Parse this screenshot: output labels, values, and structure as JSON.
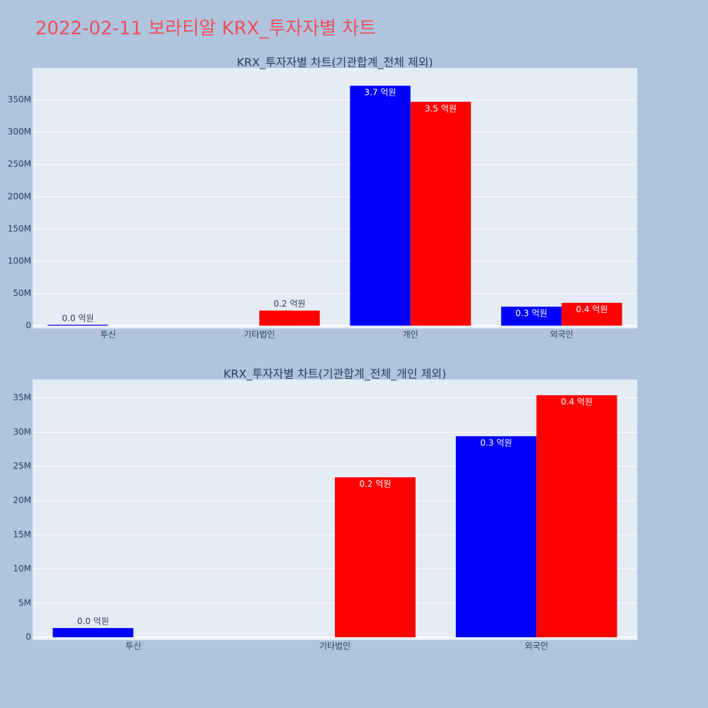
{
  "title": "2022-02-11 보라티알 KRX_투자자별 차트",
  "chart_data": [
    {
      "type": "bar",
      "title": "KRX_투자자별 차트(기관합계_전체 제외)",
      "categories": [
        "투신",
        "기타법인",
        "개인",
        "외국인"
      ],
      "series": [
        {
          "color": "#0000ff",
          "values": [
            1350000,
            null,
            372000000,
            29400000
          ],
          "value_labels": [
            "0.0 억원",
            null,
            "3.7 억원",
            "0.3 억원"
          ]
        },
        {
          "color": "#ff0000",
          "values": [
            null,
            23400000,
            347000000,
            35400000
          ],
          "value_labels": [
            null,
            "0.2 억원",
            "3.5 억원",
            "0.4 억원"
          ]
        }
      ],
      "ylim": [
        -4400000,
        399500000
      ],
      "yticks": [
        0,
        {
          "value": 50000000,
          "label": "50M"
        },
        {
          "value": 100000000,
          "label": "100M"
        },
        {
          "value": 150000000,
          "label": "150M"
        },
        {
          "value": 200000000,
          "label": "200M"
        },
        {
          "value": 250000000,
          "label": "250M"
        },
        {
          "value": 300000000,
          "label": "300M"
        },
        {
          "value": 350000000,
          "label": "350M"
        }
      ],
      "grid": true
    },
    {
      "type": "bar",
      "title": "KRX_투자자별 차트(기관합계_전체_개인 제외)",
      "categories": [
        "투신",
        "기타법인",
        "외국인"
      ],
      "series": [
        {
          "color": "#0000ff",
          "values": [
            1350000,
            null,
            29400000
          ],
          "value_labels": [
            "0.0 억원",
            null,
            "0.3 억원"
          ]
        },
        {
          "color": "#ff0000",
          "values": [
            null,
            23400000,
            35400000
          ],
          "value_labels": [
            null,
            "0.2 억원",
            "0.4 억원"
          ]
        }
      ],
      "ylim": [
        -400000,
        37700000
      ],
      "yticks": [
        0,
        {
          "value": 5000000,
          "label": "5M"
        },
        {
          "value": 10000000,
          "label": "10M"
        },
        {
          "value": 15000000,
          "label": "15M"
        },
        {
          "value": 20000000,
          "label": "20M"
        },
        {
          "value": 25000000,
          "label": "25M"
        },
        {
          "value": 30000000,
          "label": "30M"
        },
        {
          "value": 35000000,
          "label": "35M"
        }
      ],
      "grid": true
    }
  ]
}
